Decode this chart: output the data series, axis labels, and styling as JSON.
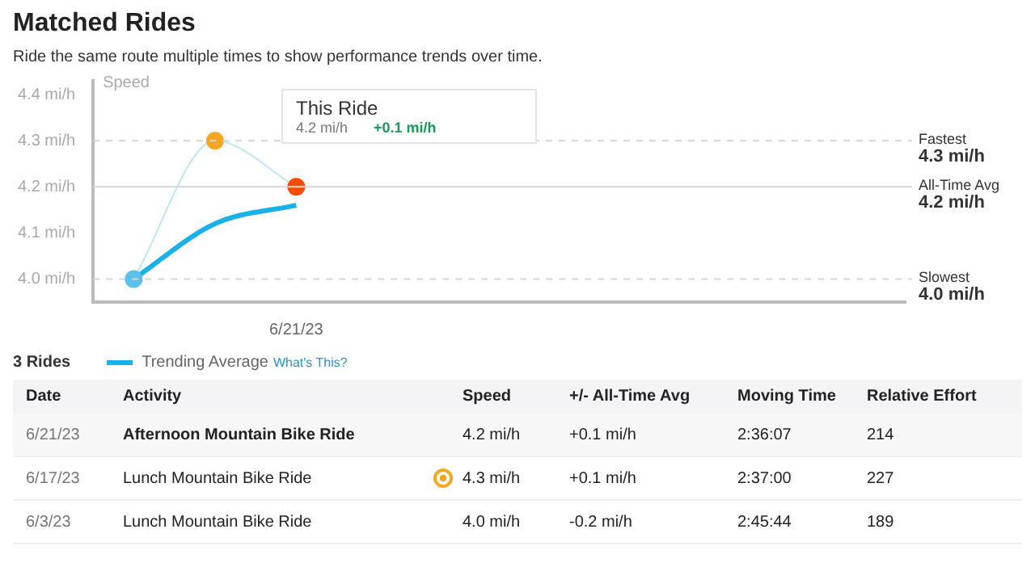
{
  "chart_data": [
    {
      "type": "line",
      "title": "Matched Rides",
      "subtitle": "Ride the same route multiple times to show performance trends over time.",
      "ylabel": "Speed",
      "categories": [
        null,
        null,
        "6/21/23",
        null,
        null,
        null,
        null,
        null,
        null,
        null
      ],
      "series": [
        {
          "type": "line",
          "color": "#bde5f5",
          "colors": [
            "#5bc0eb",
            "#f5a623",
            "#fc4c02",
            "#5bc0eb",
            "#5bc0eb",
            "#5bc0eb",
            "#5bc0eb",
            "#5bc0eb",
            "#5bc0eb",
            "#5bc0eb"
          ],
          "marker": "circle",
          "values": [
            4.0,
            4.3,
            4.2,
            null,
            null,
            null,
            null,
            null,
            null,
            null
          ]
        },
        {
          "type": "line",
          "name": "Trending Average",
          "color": "#1ab0e8",
          "marker": "none",
          "values": [
            4.0,
            4.12,
            4.16,
            null,
            null,
            null,
            null,
            null,
            null,
            null
          ]
        }
      ],
      "ylim": [
        3.95,
        4.43
      ],
      "yticks": [
        {
          "value": 4.0,
          "label": "4.0 mi/h"
        },
        {
          "value": 4.1,
          "label": "4.1 mi/h"
        },
        {
          "value": 4.2,
          "label": "4.2 mi/h"
        },
        {
          "value": 4.3,
          "label": "4.3 mi/h"
        },
        {
          "value": 4.4,
          "label": "4.4 mi/h"
        }
      ],
      "ref_lines": [
        {
          "axis": "y",
          "value": 4.3,
          "label": "Fastest\n4.3 mi/h",
          "line_style": "dashed"
        },
        {
          "axis": "y",
          "value": 4.2,
          "label": "All-Time Avg\n4.2 mi/h",
          "line_style": "solid"
        },
        {
          "axis": "y",
          "value": 4.0,
          "label": "Slowest\n4.0 mi/h",
          "line_style": "dashed"
        }
      ],
      "annotations": [
        "This Ride",
        "4.2 mi/h",
        "+0.1 mi/h",
        "3 Rides",
        "What's This?"
      ],
      "legend": "bottom",
      "grid": false
    },
    {
      "type": "other",
      "categories": [
        "Date",
        "Activity",
        "Speed",
        "+/- All-Time Avg",
        "Moving Time",
        "Relative Effort"
      ],
      "annotations": [
        "6/21/23",
        "Afternoon Mountain Bike Ride",
        "4.2 mi/h",
        "+0.1 mi/h",
        "2:36:07",
        "214",
        "6/17/23",
        "Lunch Mountain Bike Ride",
        "4.3 mi/h",
        "+0.1 mi/h",
        "2:37:00",
        "227",
        "6/3/23",
        "Lunch Mountain Bike Ride",
        "4.0 mi/h",
        "-0.2 mi/h",
        "2:45:44",
        "189"
      ]
    }
  ]
}
